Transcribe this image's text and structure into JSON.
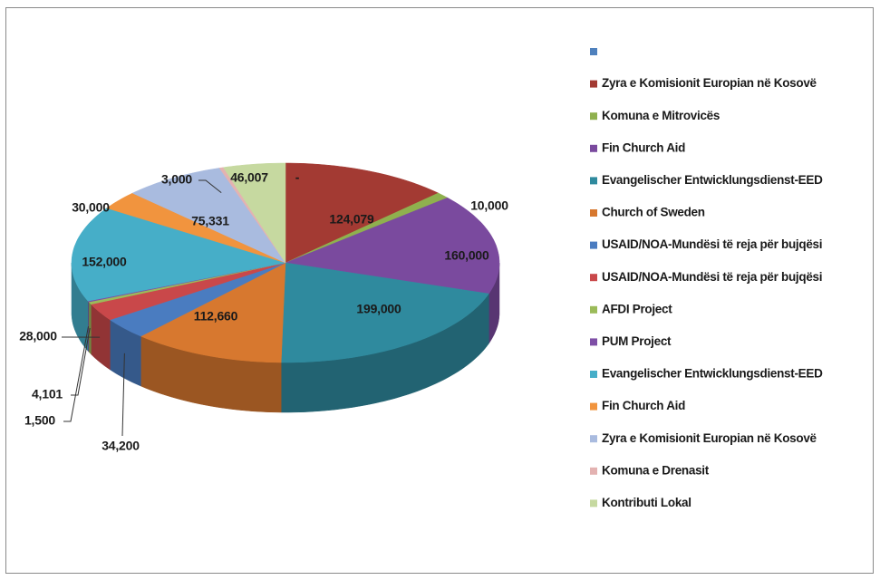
{
  "chart_data": {
    "type": "pie3d",
    "categories": [
      null,
      "Zyra e Komisionit Europian në Kosovë",
      "Komuna e Mitrovicës",
      "Fin Church Aid",
      "Evangelischer Entwicklungsdienst-EED",
      "Church of Sweden",
      "USAID/NOA-Mundësi të reja për bujqësi",
      "USAID/NOA-Mundësi të reja për bujqësi",
      "AFDI Project",
      "PUM Project",
      "Evangelischer Entwicklungsdienst-EED",
      "Fin Church Aid",
      "Zyra e Komisionit Europian në Kosovë",
      "Komuna e Drenasit",
      "Kontributi Lokal"
    ],
    "values": [
      null,
      124079,
      10000,
      160000,
      199000,
      112660,
      34200,
      28000,
      4101,
      1500,
      152000,
      30000,
      75331,
      3000,
      46007
    ],
    "value_labels": [
      "-",
      "124,079",
      "10,000",
      "160,000",
      "199,000",
      "112,660",
      "34,200",
      "28,000",
      "4,101",
      "1,500",
      "152,000",
      "30,000",
      "75,331",
      "3,000",
      "46,007"
    ],
    "colors": [
      "#4f81bd",
      "#a33a33",
      "#8fb04e",
      "#7a4a9e",
      "#2f8a9e",
      "#d7782f",
      "#4a7cc0",
      "#c9484a",
      "#9bbb59",
      "#7e4fa6",
      "#46aec8",
      "#f1943e",
      "#a9bbdf",
      "#e3b2b1",
      "#c6d9a0"
    ],
    "legend": "right"
  }
}
